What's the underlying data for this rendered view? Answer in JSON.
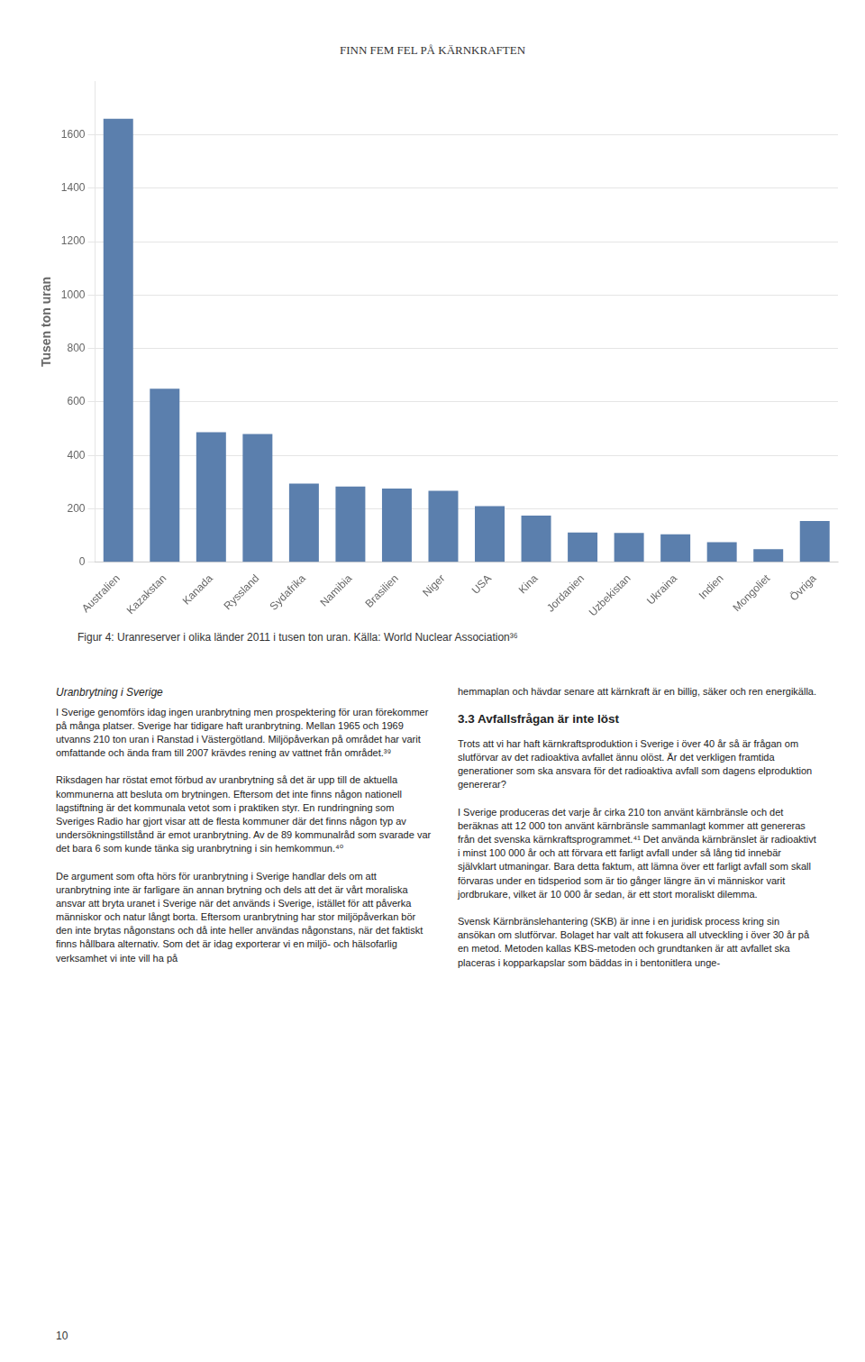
{
  "chart_data": {
    "type": "bar",
    "title": "FINN FEM FEL PÅ KÄRNKRAFTEN",
    "categories": [
      "Australien",
      "Kazakstan",
      "Kanada",
      "Ryssland",
      "Sydafrika",
      "Namibia",
      "Brasilien",
      "Niger",
      "USA",
      "Kina",
      "Jordanien",
      "Uzbekistan",
      "Ukraina",
      "Indien",
      "Mongoliet",
      "Övriga"
    ],
    "values": [
      1660,
      650,
      487,
      480,
      295,
      284,
      276,
      268,
      210,
      175,
      112,
      110,
      105,
      75,
      49,
      155
    ],
    "color": "#5b7fad",
    "ylabel": "Tusen ton uran",
    "ylim": [
      0,
      1800
    ],
    "yticks": [
      0,
      200,
      400,
      600,
      800,
      1000,
      1200,
      1400,
      1600
    ],
    "grid": true,
    "caption": "Figur 4: Uranreserver i olika länder 2011 i tusen ton uran. Källa: World Nuclear Association³⁶"
  },
  "page_text": {
    "body_title": "Uranbrytning i Sverige",
    "body_left": "I Sverige genomförs idag ingen uranbrytning men prospektering för uran förekommer på många platser. Sverige har tidigare haft uranbrytning. Mellan 1965 och 1969 utvanns 210 ton uran i Ranstad i Västergötland. Miljöpåverkan på området har varit omfattande och ända fram till 2007 krävdes rening av vattnet från området.³⁹\n\nRiksdagen har röstat emot förbud av uranbrytning så det är upp till de aktuella kommunerna att besluta om brytningen. Eftersom det inte finns någon nationell lagstiftning är det kommunala vetot som i praktiken styr. En rundringning som Sveriges Radio har gjort visar att de flesta kommuner där det finns någon typ av undersökningstillstånd är emot uranbrytning. Av de 89 kommunalråd som svarade var det bara 6 som kunde tänka sig uranbrytning i sin hemkommun.⁴⁰\n\nDe argument som ofta hörs för uranbrytning i Sverige handlar dels om att uranbrytning inte är farligare än annan brytning och dels att det är vårt moraliska ansvar att bryta uranet i Sverige när det används i Sverige, istället för att påverka människor och natur långt borta. Eftersom uranbrytning har stor miljöpåverkan bör den inte brytas någonstans och då inte heller användas någonstans, när det faktiskt finns hållbara alternativ. Som det är idag exporterar vi en miljö- och hälsofarlig verksamhet vi inte vill ha på",
    "body_right_intro": "hemmaplan och hävdar senare att kärnkraft är en billig, säker och ren energikälla.",
    "body_right_heading": "3.3 Avfallsfrågan är inte löst",
    "body_right": "Trots att vi har haft kärnkraftsproduktion i Sverige i över 40 år så är frågan om slutförvar av det radioaktiva avfallet ännu olöst. Är det verkligen framtida generationer som ska ansvara för det radioaktiva avfall som dagens elproduktion genererar?\n\nI Sverige produceras det varje år cirka 210 ton använt kärnbränsle och det beräknas att 12 000 ton använt kärnbränsle sammanlagt kommer att genereras från det svenska kärnkraftsprogrammet.⁴¹ Det använda kärnbränslet är radioaktivt i minst 100 000 år och att förvara ett farligt avfall under så lång tid innebär självklart utmaningar. Bara detta faktum, att lämna över ett farligt avfall som skall förvaras under en tidsperiod som är tio gånger längre än vi människor varit jordbrukare, vilket är 10 000 år sedan, är ett stort moraliskt dilemma.\n\nSvensk Kärnbränslehantering (SKB) är inne i en juridisk process kring sin ansökan om slutförvar. Bolaget har valt att fokusera all utveckling i över 30 år på en metod. Metoden kallas KBS-metoden och grundtanken är att avfallet ska placeras i kopparkapslar som bäddas in i bentonitlera unge-",
    "page_number": "10"
  }
}
